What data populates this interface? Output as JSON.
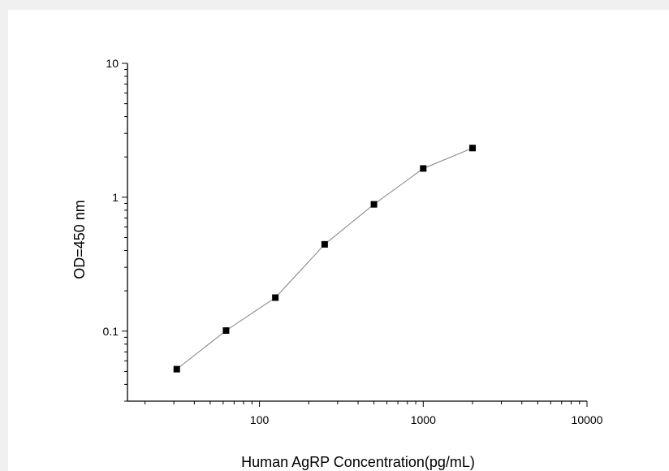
{
  "chart_data": {
    "type": "line",
    "xlabel": "Human AgRP Concentration(pg/mL)",
    "ylabel": "OD=450 nm",
    "x_scale": "log",
    "y_scale": "log",
    "xlim": [
      15.625,
      10000
    ],
    "ylim": [
      0.03,
      10
    ],
    "x_ticks": [
      100,
      1000,
      10000
    ],
    "x_tick_labels": [
      "100",
      "1000",
      "10000"
    ],
    "y_ticks": [
      0.1,
      1,
      10
    ],
    "y_tick_labels": [
      "0.1",
      "1",
      "10"
    ],
    "series": [
      {
        "x": [
          31.25,
          62.5,
          125,
          250,
          500,
          1000,
          2000
        ],
        "y": [
          0.052,
          0.101,
          0.178,
          0.445,
          0.885,
          1.64,
          2.33
        ],
        "marker": "square",
        "color": "#000000",
        "line_color": "#808080"
      }
    ],
    "grid": false
  }
}
